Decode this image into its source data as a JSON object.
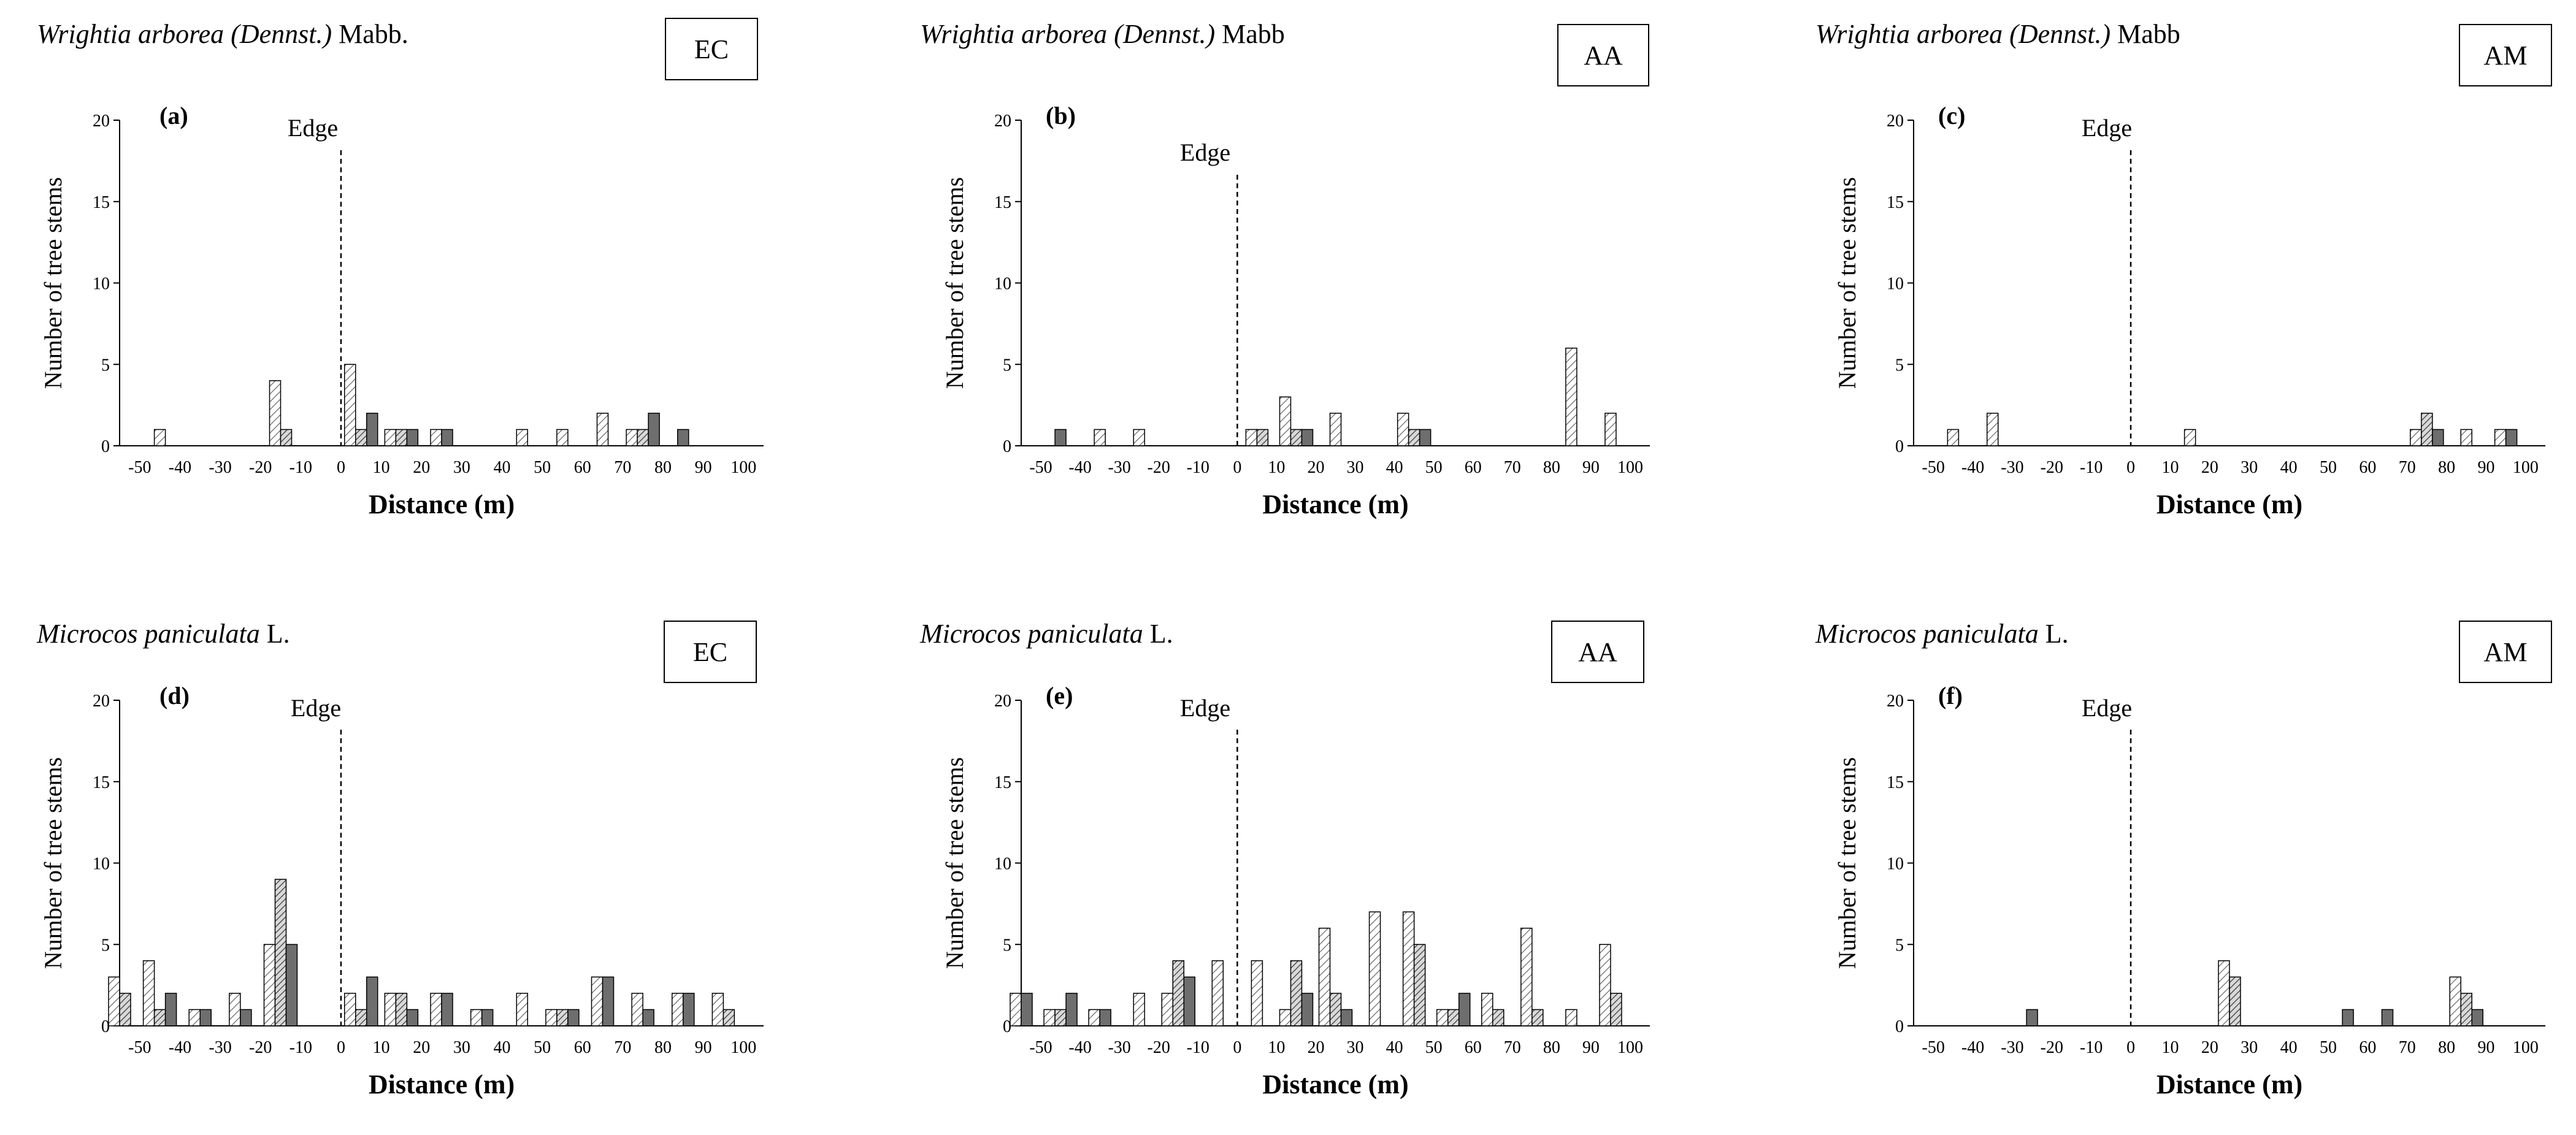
{
  "figure": {
    "description_colors": {
      "light_fill": "#ffffff",
      "medium_fill": "#c8c8c8",
      "dark_fill": "#6e6e6e",
      "stroke": "#000000"
    }
  },
  "chart_data": [
    {
      "type": "bar",
      "panel": "(a)",
      "species": "Wrightia arborea (Dennst.)",
      "authority": "Mabb.",
      "site": "EC",
      "edge_label": "Edge",
      "edge_x": 0,
      "xlabel": "Distance  (m)",
      "ylabel": "Number of tree stems",
      "ylim": [
        0,
        20
      ],
      "yticks": [
        0,
        5,
        10,
        15,
        20
      ],
      "xticks": [
        -50,
        -40,
        -30,
        -20,
        -10,
        0,
        10,
        20,
        30,
        40,
        50,
        60,
        70,
        80,
        90,
        100
      ],
      "xticklabels": [
        "-50",
        "-40",
        "-30",
        "-20",
        "-10",
        "0",
        "10",
        "20",
        "30",
        "40",
        "50",
        "60",
        "70",
        "80",
        "90",
        "100"
      ],
      "bars": [
        {
          "x": -45,
          "series": "light",
          "value": 1
        },
        {
          "x": -15,
          "series": "light",
          "value": 4
        },
        {
          "x": -15,
          "series": "medium",
          "value": 1
        },
        {
          "x": 5,
          "series": "light",
          "value": 5
        },
        {
          "x": 5,
          "series": "medium",
          "value": 1
        },
        {
          "x": 5,
          "series": "dark",
          "value": 2
        },
        {
          "x": 15,
          "series": "light",
          "value": 1
        },
        {
          "x": 15,
          "series": "medium",
          "value": 1
        },
        {
          "x": 15,
          "series": "dark",
          "value": 1
        },
        {
          "x": 25,
          "series": "light",
          "value": 1
        },
        {
          "x": 25,
          "series": "dark",
          "value": 1
        },
        {
          "x": 45,
          "series": "light",
          "value": 1
        },
        {
          "x": 55,
          "series": "light",
          "value": 1
        },
        {
          "x": 65,
          "series": "light",
          "value": 2
        },
        {
          "x": 75,
          "series": "light",
          "value": 1
        },
        {
          "x": 75,
          "series": "medium",
          "value": 1
        },
        {
          "x": 75,
          "series": "dark",
          "value": 2
        },
        {
          "x": 85,
          "series": "dark",
          "value": 1
        }
      ]
    },
    {
      "type": "bar",
      "panel": "(b)",
      "species": "Wrightia arborea (Dennst.)",
      "authority": "Mabb",
      "site": "AA",
      "edge_label": "Edge",
      "edge_x": 0,
      "xlabel": "Distance  (m)",
      "ylabel": "Number of tree stems",
      "ylim": [
        0,
        20
      ],
      "yticks": [
        0,
        5,
        10,
        15,
        20
      ],
      "xticks": [
        -50,
        -40,
        -30,
        -20,
        -10,
        0,
        10,
        20,
        30,
        40,
        50,
        60,
        70,
        80,
        90,
        100
      ],
      "xticklabels": [
        "-50",
        "-40",
        "-30",
        "-20",
        "-10",
        "0",
        "10",
        "20",
        "30",
        "40",
        "50",
        "60",
        "70",
        "80",
        "90",
        "100"
      ],
      "bars": [
        {
          "x": -45,
          "series": "dark",
          "value": 1
        },
        {
          "x": -35,
          "series": "light",
          "value": 1
        },
        {
          "x": -25,
          "series": "light",
          "value": 1
        },
        {
          "x": 5,
          "series": "light",
          "value": 1
        },
        {
          "x": 5,
          "series": "medium",
          "value": 1
        },
        {
          "x": 15,
          "series": "light",
          "value": 3
        },
        {
          "x": 15,
          "series": "medium",
          "value": 1
        },
        {
          "x": 15,
          "series": "dark",
          "value": 1
        },
        {
          "x": 25,
          "series": "light",
          "value": 2
        },
        {
          "x": 45,
          "series": "light",
          "value": 2
        },
        {
          "x": 45,
          "series": "medium",
          "value": 1
        },
        {
          "x": 45,
          "series": "dark",
          "value": 1
        },
        {
          "x": 85,
          "series": "light",
          "value": 6
        },
        {
          "x": 95,
          "series": "light",
          "value": 2
        }
      ]
    },
    {
      "type": "bar",
      "panel": "(c)",
      "species": "Wrightia arborea (Dennst.)",
      "authority": "Mabb",
      "site": "AM",
      "edge_label": "Edge",
      "edge_x": 0,
      "xlabel": "Distance  (m)",
      "ylabel": "Number of tree stems",
      "ylim": [
        0,
        20
      ],
      "yticks": [
        0,
        5,
        10,
        15,
        20
      ],
      "xticks": [
        -50,
        -40,
        -30,
        -20,
        -10,
        0,
        10,
        20,
        30,
        40,
        50,
        60,
        70,
        80,
        90,
        100
      ],
      "xticklabels": [
        "-50",
        "-40",
        "-30",
        "-20",
        "-10",
        "0",
        "10",
        "20",
        "30",
        "40",
        "50",
        "60",
        "70",
        "80",
        "90",
        "100"
      ],
      "bars": [
        {
          "x": -45,
          "series": "light",
          "value": 1
        },
        {
          "x": -35,
          "series": "light",
          "value": 2
        },
        {
          "x": 15,
          "series": "light",
          "value": 1
        },
        {
          "x": 75,
          "series": "light",
          "value": 1
        },
        {
          "x": 75,
          "series": "medium",
          "value": 2
        },
        {
          "x": 75,
          "series": "dark",
          "value": 1
        },
        {
          "x": 85,
          "series": "light",
          "value": 1
        },
        {
          "x": 95,
          "series": "light",
          "value": 1
        },
        {
          "x": 95,
          "series": "dark",
          "value": 1
        }
      ]
    },
    {
      "type": "bar",
      "panel": "(d)",
      "species": "Microcos paniculata",
      "authority": "L.",
      "site": "EC",
      "edge_label": "Edge",
      "edge_x": 0,
      "xlabel": "Distance  (m)",
      "ylabel": "Number of tree stems",
      "ylim": [
        0,
        20
      ],
      "yticks": [
        0,
        5,
        10,
        15,
        20
      ],
      "xticks": [
        -50,
        -40,
        -30,
        -20,
        -10,
        0,
        10,
        20,
        30,
        40,
        50,
        60,
        70,
        80,
        90,
        100
      ],
      "xticklabels": [
        "-50",
        "-40",
        "-30",
        "-20",
        "-10",
        "0",
        "10",
        "20",
        "30",
        "40",
        "50",
        "60",
        "70",
        "80",
        "90",
        "100"
      ],
      "bars": [
        {
          "x": -55,
          "series": "light",
          "value": 3
        },
        {
          "x": -55,
          "series": "medium",
          "value": 2
        },
        {
          "x": -45,
          "series": "light",
          "value": 4
        },
        {
          "x": -45,
          "series": "medium",
          "value": 1
        },
        {
          "x": -45,
          "series": "dark",
          "value": 2
        },
        {
          "x": -35,
          "series": "light",
          "value": 1
        },
        {
          "x": -35,
          "series": "dark",
          "value": 1
        },
        {
          "x": -25,
          "series": "light",
          "value": 2
        },
        {
          "x": -25,
          "series": "dark",
          "value": 1
        },
        {
          "x": -15,
          "series": "light",
          "value": 5
        },
        {
          "x": -15,
          "series": "medium",
          "value": 9
        },
        {
          "x": -15,
          "series": "dark",
          "value": 5
        },
        {
          "x": 5,
          "series": "light",
          "value": 2
        },
        {
          "x": 5,
          "series": "medium",
          "value": 1
        },
        {
          "x": 5,
          "series": "dark",
          "value": 3
        },
        {
          "x": 15,
          "series": "light",
          "value": 2
        },
        {
          "x": 15,
          "series": "medium",
          "value": 2
        },
        {
          "x": 15,
          "series": "dark",
          "value": 1
        },
        {
          "x": 25,
          "series": "light",
          "value": 2
        },
        {
          "x": 25,
          "series": "dark",
          "value": 2
        },
        {
          "x": 35,
          "series": "light",
          "value": 1
        },
        {
          "x": 35,
          "series": "dark",
          "value": 1
        },
        {
          "x": 45,
          "series": "light",
          "value": 2
        },
        {
          "x": 55,
          "series": "light",
          "value": 1
        },
        {
          "x": 55,
          "series": "medium",
          "value": 1
        },
        {
          "x": 55,
          "series": "dark",
          "value": 1
        },
        {
          "x": 65,
          "series": "light",
          "value": 3
        },
        {
          "x": 65,
          "series": "dark",
          "value": 3
        },
        {
          "x": 75,
          "series": "light",
          "value": 2
        },
        {
          "x": 75,
          "series": "dark",
          "value": 1
        },
        {
          "x": 85,
          "series": "light",
          "value": 2
        },
        {
          "x": 85,
          "series": "dark",
          "value": 2
        },
        {
          "x": 95,
          "series": "light",
          "value": 2
        },
        {
          "x": 95,
          "series": "medium",
          "value": 1
        }
      ]
    },
    {
      "type": "bar",
      "panel": "(e)",
      "species": "Microcos paniculata",
      "authority": "L.",
      "site": "AA",
      "edge_label": "Edge",
      "edge_x": 0,
      "xlabel": "Distance  (m)",
      "ylabel": "Number of tree stems",
      "ylim": [
        0,
        20
      ],
      "yticks": [
        0,
        5,
        10,
        15,
        20
      ],
      "xticks": [
        -50,
        -40,
        -30,
        -20,
        -10,
        0,
        10,
        20,
        30,
        40,
        50,
        60,
        70,
        80,
        90,
        100
      ],
      "xticklabels": [
        "-50",
        "-40",
        "-30",
        "-20",
        "-10",
        "0",
        "10",
        "20",
        "30",
        "40",
        "50",
        "60",
        "70",
        "80",
        "90",
        "100"
      ],
      "bars": [
        {
          "x": -55,
          "series": "light",
          "value": 2
        },
        {
          "x": -55,
          "series": "dark",
          "value": 2
        },
        {
          "x": -45,
          "series": "light",
          "value": 1
        },
        {
          "x": -45,
          "series": "medium",
          "value": 1
        },
        {
          "x": -45,
          "series": "dark",
          "value": 2
        },
        {
          "x": -35,
          "series": "light",
          "value": 1
        },
        {
          "x": -35,
          "series": "dark",
          "value": 1
        },
        {
          "x": -25,
          "series": "light",
          "value": 2
        },
        {
          "x": -15,
          "series": "light",
          "value": 2
        },
        {
          "x": -15,
          "series": "medium",
          "value": 4
        },
        {
          "x": -15,
          "series": "dark",
          "value": 3
        },
        {
          "x": -5,
          "series": "light",
          "value": 4
        },
        {
          "x": 5,
          "series": "light",
          "value": 4
        },
        {
          "x": 15,
          "series": "light",
          "value": 1
        },
        {
          "x": 15,
          "series": "medium",
          "value": 4
        },
        {
          "x": 15,
          "series": "dark",
          "value": 2
        },
        {
          "x": 25,
          "series": "light",
          "value": 6
        },
        {
          "x": 25,
          "series": "medium",
          "value": 2
        },
        {
          "x": 25,
          "series": "dark",
          "value": 1
        },
        {
          "x": 35,
          "series": "light",
          "value": 7
        },
        {
          "x": 45,
          "series": "light",
          "value": 7
        },
        {
          "x": 45,
          "series": "medium",
          "value": 5
        },
        {
          "x": 55,
          "series": "light",
          "value": 1
        },
        {
          "x": 55,
          "series": "medium",
          "value": 1
        },
        {
          "x": 55,
          "series": "dark",
          "value": 2
        },
        {
          "x": 65,
          "series": "light",
          "value": 2
        },
        {
          "x": 65,
          "series": "medium",
          "value": 1
        },
        {
          "x": 75,
          "series": "light",
          "value": 6
        },
        {
          "x": 75,
          "series": "medium",
          "value": 1
        },
        {
          "x": 85,
          "series": "light",
          "value": 1
        },
        {
          "x": 95,
          "series": "light",
          "value": 5
        },
        {
          "x": 95,
          "series": "medium",
          "value": 2
        }
      ]
    },
    {
      "type": "bar",
      "panel": "(f)",
      "species": "Microcos paniculata",
      "authority": "L.",
      "site": "AM",
      "edge_label": "Edge",
      "edge_x": 0,
      "xlabel": "Distance  (m)",
      "ylabel": "Number of tree stems",
      "ylim": [
        0,
        20
      ],
      "yticks": [
        0,
        5,
        10,
        15,
        20
      ],
      "xticks": [
        -50,
        -40,
        -30,
        -20,
        -10,
        0,
        10,
        20,
        30,
        40,
        50,
        60,
        70,
        80,
        90,
        100
      ],
      "xticklabels": [
        "-50",
        "-40",
        "-30",
        "-20",
        "-10",
        "0",
        "10",
        "20",
        "30",
        "40",
        "50",
        "60",
        "70",
        "80",
        "90",
        "100"
      ],
      "bars": [
        {
          "x": -25,
          "series": "dark",
          "value": 1
        },
        {
          "x": 25,
          "series": "light",
          "value": 4
        },
        {
          "x": 25,
          "series": "medium",
          "value": 3
        },
        {
          "x": 55,
          "series": "dark",
          "value": 1
        },
        {
          "x": 65,
          "series": "dark",
          "value": 1
        },
        {
          "x": 85,
          "series": "light",
          "value": 3
        },
        {
          "x": 85,
          "series": "medium",
          "value": 2
        },
        {
          "x": 85,
          "series": "dark",
          "value": 1
        }
      ]
    }
  ]
}
